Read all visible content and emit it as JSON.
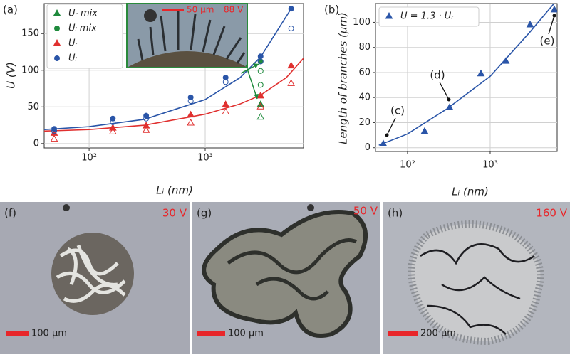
{
  "chart_data": [
    {
      "type": "scatter",
      "label": "(a)",
      "ylabel": "U (V)",
      "xlabel": "Lᵢ (nm)",
      "xscale": "log",
      "grid": true,
      "legend": "upper left",
      "xlim": [
        41,
        7030
      ],
      "ylim": [
        -6,
        191
      ],
      "xticks": [
        {
          "value": 100,
          "label": "10²"
        },
        {
          "value": 1000,
          "label": "10³"
        }
      ],
      "yticks": [
        0,
        50,
        100,
        150
      ],
      "inset": {
        "scale": "50 µm",
        "voltage": "88 V"
      },
      "series": [
        {
          "name": "Uᵣ mix",
          "color": "#1e8a3c",
          "marker": "triangle",
          "filled": true,
          "x": [
            3000
          ],
          "values": [
            53
          ]
        },
        {
          "name": "Uₗ mix",
          "color": "#1e8a3c",
          "marker": "circle",
          "filled": true,
          "x": [
            3000
          ],
          "values": [
            112
          ]
        },
        {
          "name": "Uᵣ",
          "color": "#e0302f",
          "marker": "triangle",
          "filled": true,
          "x": [
            50,
            160,
            310,
            750,
            1500,
            3000,
            5500
          ],
          "values": [
            14,
            21,
            24,
            39,
            53,
            65,
            106
          ]
        },
        {
          "name": "Uₗ",
          "color": "#2a55a8",
          "marker": "circle",
          "filled": true,
          "x": [
            50,
            160,
            310,
            750,
            1500,
            3000,
            5500
          ],
          "values": [
            20,
            34,
            38,
            63,
            90,
            119,
            184
          ]
        },
        {
          "color": "#2a55a8",
          "marker": "circle",
          "filled": false,
          "x": [
            50,
            160,
            310,
            750,
            1500,
            3000,
            5500
          ],
          "values": [
            17,
            29,
            34,
            58,
            84,
            112,
            157
          ]
        },
        {
          "color": "#e0302f",
          "marker": "triangle",
          "filled": false,
          "x": [
            50,
            160,
            310,
            750,
            1500,
            3000,
            5500
          ],
          "values": [
            6,
            16,
            18,
            28,
            43,
            50,
            82
          ]
        },
        {
          "color": "#1e8a3c",
          "marker": "circle",
          "filled": false,
          "x": [
            3000,
            3000
          ],
          "values": [
            99,
            80
          ]
        },
        {
          "color": "#1e8a3c",
          "marker": "triangle",
          "filled": false,
          "x": [
            3000
          ],
          "values": [
            36
          ]
        },
        {
          "color": "#2a55a8",
          "marker": "line",
          "x": [
            41,
            100,
            300,
            1000,
            2000,
            3000,
            5500
          ],
          "values": [
            19,
            23,
            33,
            60,
            90,
            118,
            184
          ]
        },
        {
          "color": "#e0302f",
          "marker": "line",
          "x": [
            41,
            100,
            300,
            1000,
            2000,
            3000,
            5000,
            7000
          ],
          "values": [
            17,
            19,
            25,
            40,
            54,
            66,
            90,
            116
          ]
        }
      ]
    },
    {
      "type": "scatter",
      "label": "(b)",
      "ylabel": "Length of branches (µm)",
      "xlabel": "Lᵢ (nm)",
      "xscale": "log",
      "grid": true,
      "legend": "upper left",
      "xlim": [
        41,
        6460
      ],
      "ylim": [
        -3,
        115
      ],
      "xticks": [
        {
          "value": 100,
          "label": "10²"
        },
        {
          "value": 1000,
          "label": "10³"
        }
      ],
      "yticks": [
        0,
        20,
        40,
        60,
        80,
        100
      ],
      "annotations": [
        "(c)",
        "(d)",
        "(e)"
      ],
      "series": [
        {
          "color": "#2a55a8",
          "marker": "line",
          "x": [
            45,
            100,
            300,
            1000,
            3000,
            6460
          ],
          "values": [
            2,
            11,
            31,
            57,
            92,
            118
          ]
        },
        {
          "name": "U = 1.3 · Uᵣ",
          "color": "#2a55a8",
          "marker": "triangle",
          "filled": true,
          "x": [
            51,
            161,
            323,
            773,
            1550,
            3040,
            5970
          ],
          "values": [
            3,
            13,
            32,
            59,
            69,
            98,
            110
          ]
        }
      ]
    }
  ],
  "images": [
    {
      "label": "(f)",
      "voltage": "30 V",
      "scale": "100 µm"
    },
    {
      "label": "(g)",
      "voltage": "50 V",
      "scale": "100 µm"
    },
    {
      "label": "(h)",
      "voltage": "160 V",
      "scale": "200 µm"
    }
  ]
}
